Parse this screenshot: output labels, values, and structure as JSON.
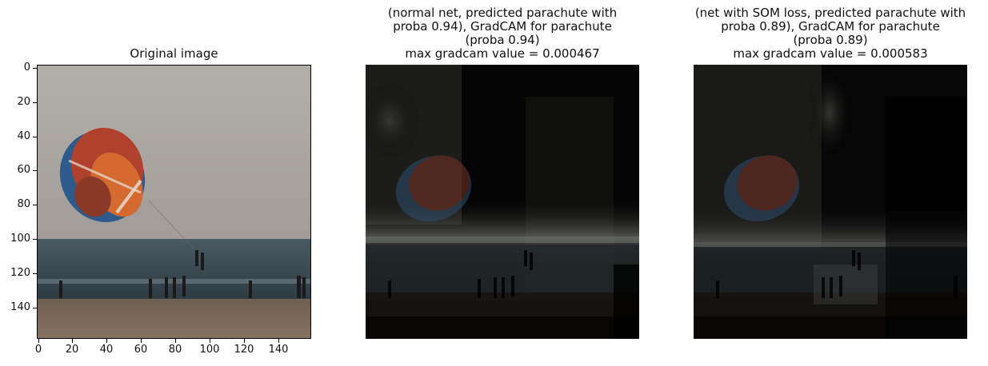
{
  "panels": [
    {
      "title": "Original image"
    },
    {
      "title": "(normal net, predicted parachute with\nproba 0.94), GradCAM for parachute\n(proba 0.94)\nmax gradcam value = 0.000467"
    },
    {
      "title": "(net with SOM loss, predicted parachute with\nproba 0.89), GradCAM for parachute\n(proba 0.89)\nmax gradcam value = 0.000583"
    }
  ],
  "axes": {
    "y_ticks": [
      "0",
      "20",
      "40",
      "60",
      "80",
      "100",
      "120",
      "140"
    ],
    "x_ticks": [
      "0",
      "20",
      "40",
      "60",
      "80",
      "100",
      "120",
      "140"
    ]
  },
  "colors": {
    "sky": "#aca9a4",
    "sea": "#3b4c55",
    "sand": "#7a6a58",
    "parachute_red": "#b0412c",
    "parachute_blue": "#2f5b8c",
    "parachute_orange": "#d46a2f"
  }
}
